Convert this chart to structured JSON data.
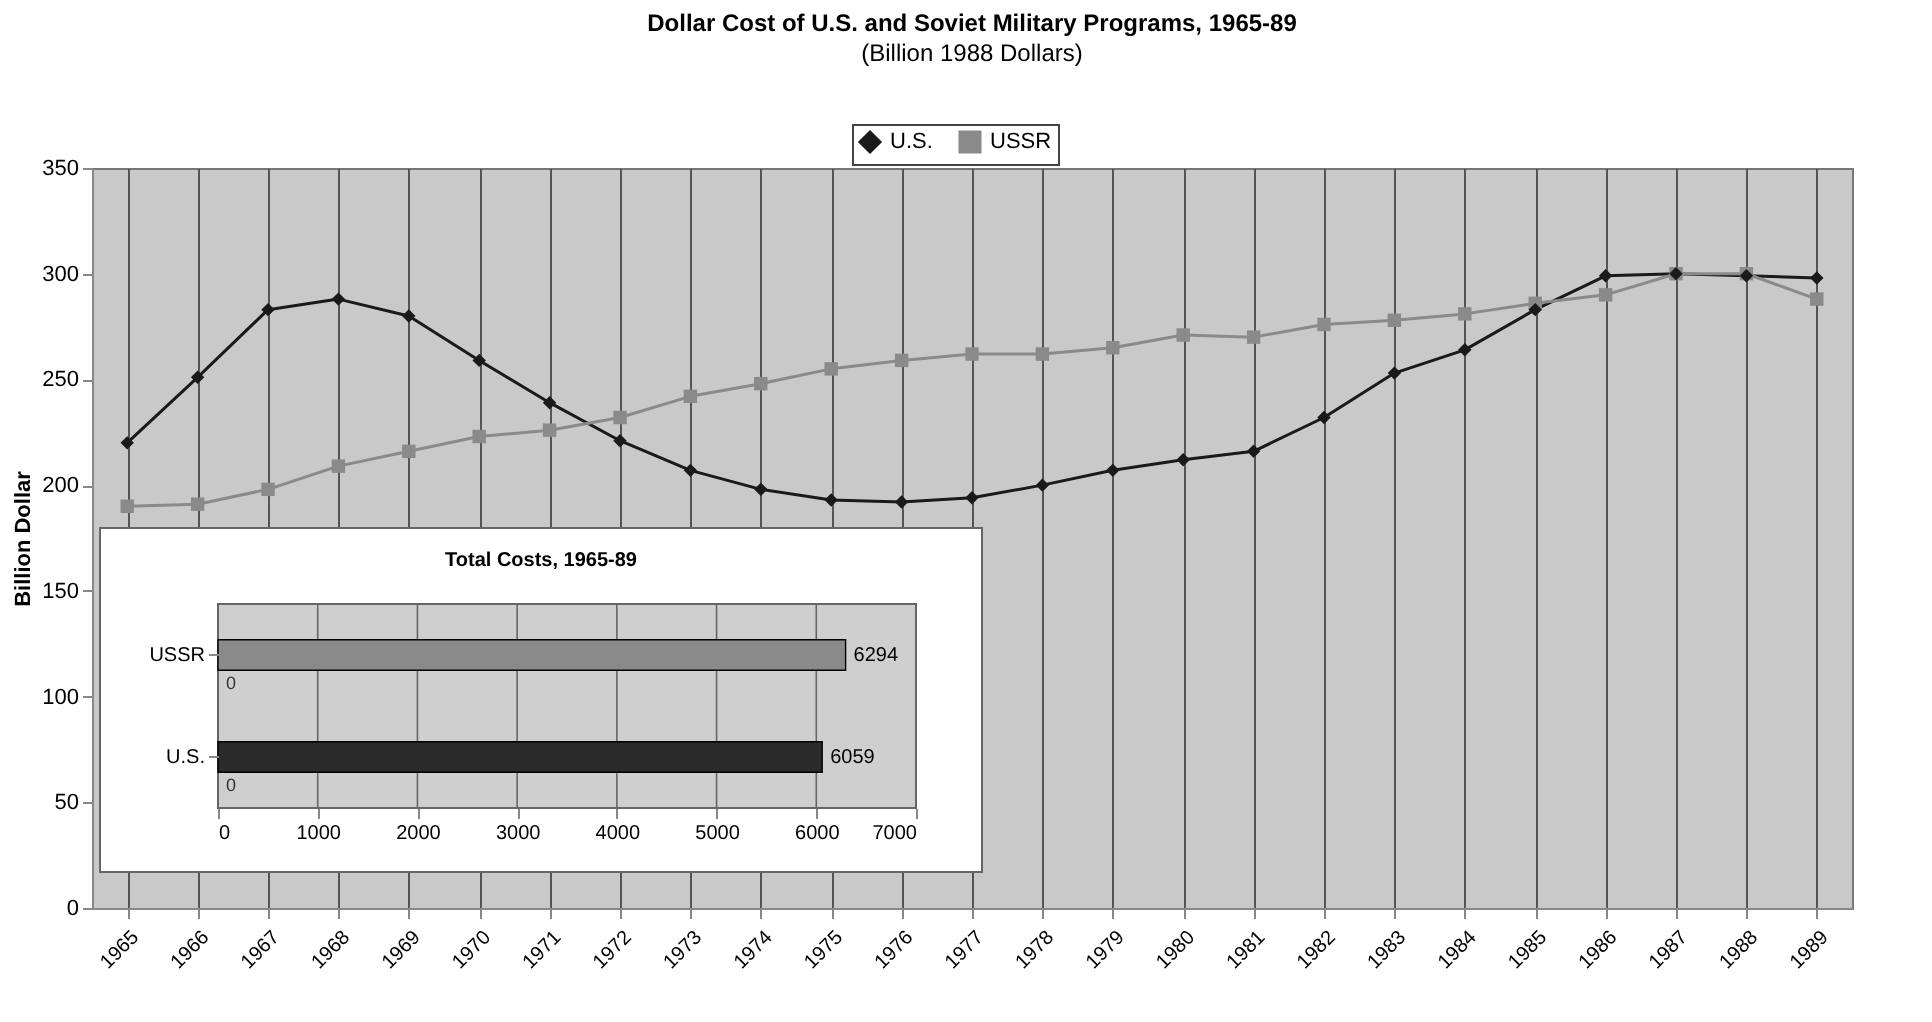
{
  "chart_data": [
    {
      "type": "line",
      "title": "Dollar Cost of U.S. and Soviet Military Programs, 1965-89",
      "subtitle": "(Billion 1988 Dollars)",
      "ylabel": "Billion Dollar",
      "categories": [
        "1965",
        "1966",
        "1967",
        "1968",
        "1969",
        "1970",
        "1971",
        "1972",
        "1973",
        "1974",
        "1975",
        "1976",
        "1977",
        "1978",
        "1979",
        "1980",
        "1981",
        "1982",
        "1983",
        "1984",
        "1985",
        "1986",
        "1987",
        "1988",
        "1989"
      ],
      "series": [
        {
          "name": "U.S.",
          "color": "#1a1a1a",
          "marker": "diamond",
          "values": [
            220,
            251,
            283,
            288,
            280,
            259,
            239,
            221,
            207,
            198,
            193,
            192,
            194,
            200,
            207,
            212,
            216,
            232,
            253,
            264,
            283,
            299,
            300,
            299,
            298
          ]
        },
        {
          "name": "USSR",
          "color": "#8a8a8a",
          "marker": "square",
          "values": [
            190,
            191,
            198,
            209,
            216,
            223,
            226,
            232,
            242,
            248,
            255,
            259,
            262,
            262,
            265,
            271,
            270,
            276,
            278,
            281,
            286,
            290,
            300,
            300,
            288
          ]
        }
      ],
      "ylim": [
        0,
        350
      ],
      "yticks": [
        0,
        50,
        100,
        150,
        200,
        250,
        300,
        350
      ],
      "grid": "x",
      "legend": "top"
    },
    {
      "type": "bar",
      "orientation": "horizontal",
      "title": "Total Costs, 1965-89",
      "categories": [
        "USSR",
        "U.S."
      ],
      "values": [
        6294,
        6059
      ],
      "colors": [
        "#8a8a8a",
        "#2b2b2b"
      ],
      "xlim": [
        0,
        7000
      ],
      "xticks": [
        0,
        1000,
        2000,
        3000,
        4000,
        5000,
        6000,
        7000
      ],
      "grid": "x",
      "data_labels": true,
      "annotations": [
        {
          "text": "0",
          "x": 0,
          "y": "USSR"
        },
        {
          "text": "0",
          "x": 0,
          "y": "U.S."
        }
      ]
    }
  ]
}
